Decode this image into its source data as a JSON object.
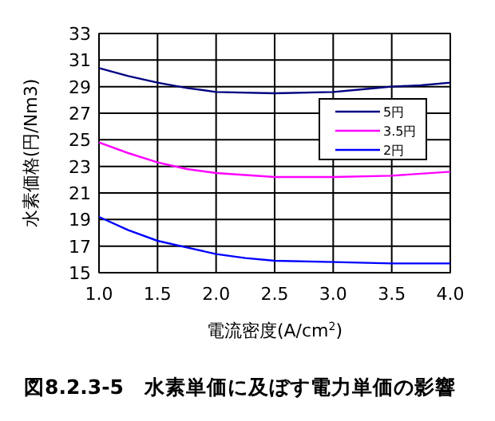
{
  "chart_data": {
    "type": "line",
    "xlabel": "電流密度(A/cm$^{2}$)",
    "ylabel": "水素価格(円/Nm3)",
    "xlim": [
      1.0,
      4.0
    ],
    "xticks": [
      {
        "value": 1.0,
        "label": "1.0"
      },
      {
        "value": 1.5,
        "label": "1.5"
      },
      {
        "value": 2.0,
        "label": "2.0"
      },
      {
        "value": 2.5,
        "label": "2.5"
      },
      {
        "value": 3.0,
        "label": "3.0"
      },
      {
        "value": 3.5,
        "label": "3.5"
      },
      {
        "value": 4.0,
        "label": "4.0"
      }
    ],
    "ylim": [
      15,
      33
    ],
    "yticks": [
      15,
      17,
      19,
      21,
      23,
      25,
      27,
      29,
      31,
      33
    ],
    "grid": true,
    "legend": "right",
    "marker": "none",
    "series": [
      {
        "name": "5円",
        "color": "#000080",
        "x": [
          1.0,
          1.25,
          1.5,
          1.75,
          2.0,
          2.5,
          3.0,
          3.25,
          3.5,
          3.75,
          4.0
        ],
        "values": [
          30.4,
          29.8,
          29.3,
          28.9,
          28.6,
          28.5,
          28.6,
          28.8,
          29.0,
          29.1,
          29.3
        ]
      },
      {
        "name": "3.5円",
        "color": "#ff00ff",
        "x": [
          1.0,
          1.25,
          1.5,
          1.75,
          2.0,
          2.5,
          3.0,
          3.5,
          4.0
        ],
        "values": [
          24.8,
          24.0,
          23.3,
          22.8,
          22.5,
          22.2,
          22.2,
          22.3,
          22.6
        ]
      },
      {
        "name": "2円",
        "color": "#0000ff",
        "x": [
          1.0,
          1.25,
          1.5,
          1.75,
          2.0,
          2.25,
          2.5,
          3.0,
          3.5,
          4.0
        ],
        "values": [
          19.2,
          18.2,
          17.4,
          16.9,
          16.4,
          16.1,
          15.9,
          15.8,
          15.7,
          15.7
        ]
      }
    ],
    "annotations": [
      "図8.2.3-5　水素単価に及ぼす電力単価の影響"
    ]
  }
}
